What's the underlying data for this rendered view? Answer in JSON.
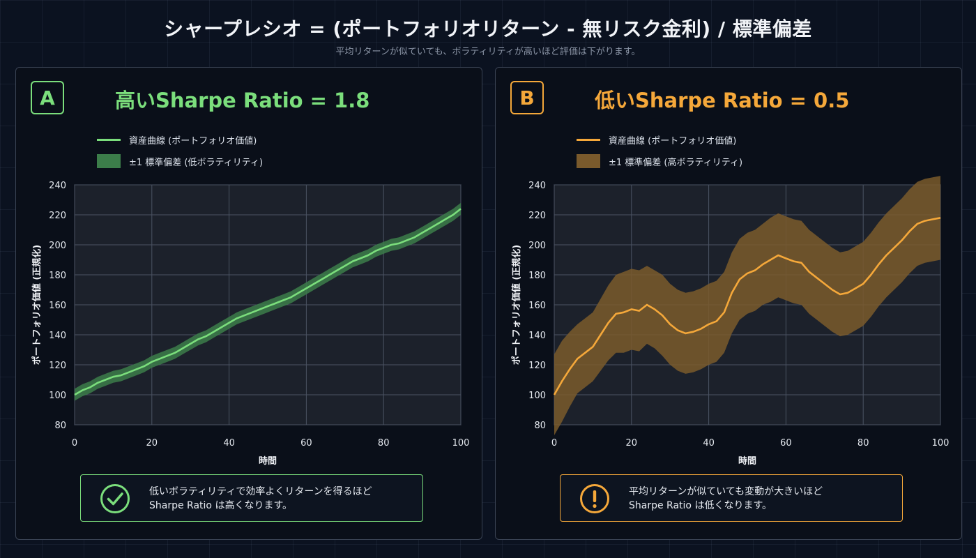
{
  "header": {
    "title": "シャープレシオ = (ポートフォリオリターン - 無リスク金利) / 標準偏差",
    "subtitle": "平均リターンが似ていても、ボラティリティが高いほど評価は下がります。"
  },
  "panels": [
    {
      "badge": "A",
      "title": "高いSharpe Ratio = 1.8",
      "accent": "#7bde7c",
      "band_color": "#3c7d4a",
      "legend_line": "資産曲線 (ポートフォリオ価値)",
      "legend_band": "±1 標準偏差 (低ボラティリティ)",
      "callout_icon": "check-circle-icon",
      "callout_line1": "低いボラティリティで効率よくリターンを得るほど",
      "callout_line2": "Sharpe Ratio は高くなります。"
    },
    {
      "badge": "B",
      "title": "低いSharpe Ratio = 0.5",
      "accent": "#f5a83a",
      "band_color": "#7a5a2c",
      "legend_line": "資産曲線 (ポートフォリオ価値)",
      "legend_band": "±1 標準偏差 (高ボラティリティ)",
      "callout_icon": "exclamation-circle-icon",
      "callout_line1": "平均リターンが似ていても変動が大きいほど",
      "callout_line2": "Sharpe Ratio は低くなります。"
    }
  ],
  "chart_data": [
    {
      "type": "line",
      "title": "高いSharpe Ratio = 1.8",
      "xlabel": "時間",
      "ylabel": "ポートフォリオ価値 (正規化)",
      "xlim": [
        0,
        100
      ],
      "ylim": [
        80,
        240
      ],
      "xticks": [
        0,
        20,
        40,
        60,
        80,
        100
      ],
      "yticks": [
        80,
        100,
        120,
        140,
        160,
        180,
        200,
        220,
        240
      ],
      "grid": true,
      "legend_position": "top-left",
      "series": [
        {
          "name": "資産曲線 (ポートフォリオ価値)",
          "x": [
            0,
            2,
            4,
            6,
            8,
            10,
            12,
            14,
            16,
            18,
            20,
            22,
            24,
            26,
            28,
            30,
            32,
            34,
            36,
            38,
            40,
            42,
            44,
            46,
            48,
            50,
            52,
            54,
            56,
            58,
            60,
            62,
            64,
            66,
            68,
            70,
            72,
            74,
            76,
            78,
            80,
            82,
            84,
            86,
            88,
            90,
            92,
            94,
            96,
            98,
            100
          ],
          "y": [
            100,
            103,
            105,
            108,
            110,
            112,
            113,
            115,
            117,
            119,
            122,
            124,
            126,
            128,
            131,
            134,
            137,
            139,
            142,
            145,
            148,
            151,
            153,
            155,
            157,
            159,
            161,
            163,
            165,
            168,
            171,
            174,
            177,
            180,
            183,
            186,
            189,
            191,
            193,
            196,
            198,
            200,
            201,
            203,
            205,
            208,
            211,
            214,
            217,
            220,
            224
          ]
        }
      ],
      "band": {
        "name": "±1 標準偏差 (低ボラティリティ)",
        "width": 4
      }
    },
    {
      "type": "line",
      "title": "低いSharpe Ratio = 0.5",
      "xlabel": "時間",
      "ylabel": "ポートフォリオ価値 (正規化)",
      "xlim": [
        0,
        100
      ],
      "ylim": [
        80,
        240
      ],
      "xticks": [
        0,
        20,
        40,
        60,
        80,
        100
      ],
      "yticks": [
        80,
        100,
        120,
        140,
        160,
        180,
        200,
        220,
        240
      ],
      "grid": true,
      "legend_position": "top-left",
      "series": [
        {
          "name": "資産曲線 (ポートフォリオ価値)",
          "x": [
            0,
            2,
            4,
            6,
            8,
            10,
            12,
            14,
            16,
            18,
            20,
            22,
            24,
            26,
            28,
            30,
            32,
            34,
            36,
            38,
            40,
            42,
            44,
            46,
            48,
            50,
            52,
            54,
            56,
            58,
            60,
            62,
            64,
            66,
            68,
            70,
            72,
            74,
            76,
            78,
            80,
            82,
            84,
            86,
            88,
            90,
            92,
            94,
            96,
            98,
            100
          ],
          "y": [
            100,
            109,
            117,
            124,
            128,
            132,
            140,
            148,
            154,
            155,
            157,
            156,
            160,
            157,
            153,
            147,
            143,
            141,
            142,
            144,
            147,
            149,
            155,
            168,
            177,
            181,
            183,
            187,
            190,
            193,
            191,
            189,
            188,
            182,
            178,
            174,
            170,
            167,
            168,
            171,
            174,
            180,
            187,
            193,
            198,
            203,
            209,
            214,
            216,
            217,
            218
          ]
        }
      ],
      "band": {
        "name": "±1 標準偏差 (高ボラティリティ)",
        "half_width": [
          27,
          27,
          25,
          23,
          23,
          23,
          24,
          25,
          26,
          27,
          27,
          27,
          26,
          26,
          27,
          27,
          27,
          27,
          27,
          27,
          27,
          27,
          27,
          27,
          27,
          27,
          27,
          27,
          28,
          28,
          28,
          28,
          28,
          28,
          28,
          28,
          28,
          28,
          28,
          28,
          28,
          28,
          28,
          28,
          28,
          28,
          28,
          28,
          28,
          28,
          28
        ]
      }
    }
  ]
}
